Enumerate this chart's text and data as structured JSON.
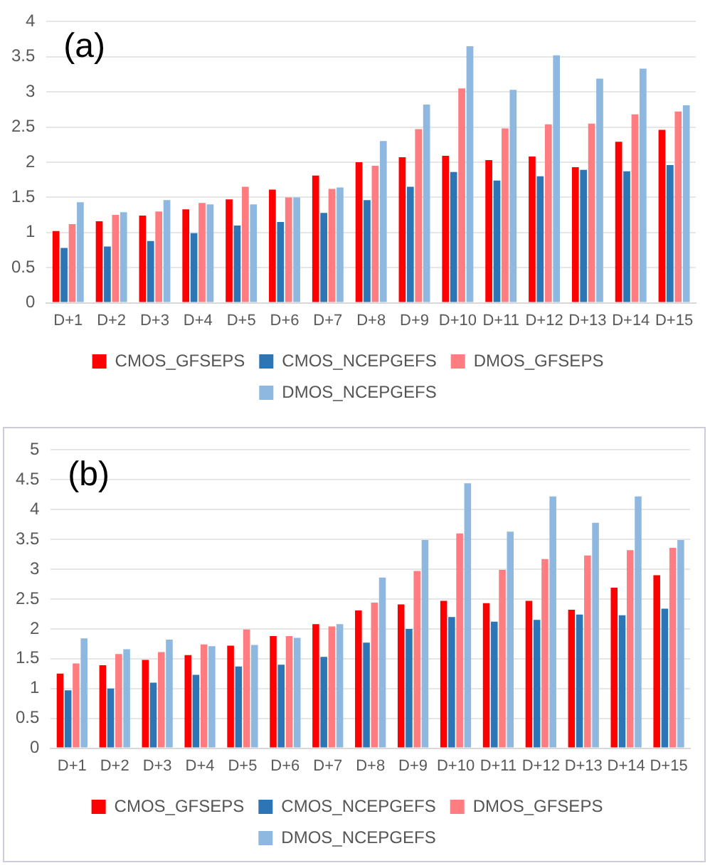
{
  "chart_data": [
    {
      "type": "bar",
      "annotations": [
        "(a)"
      ],
      "categories": [
        "D+1",
        "D+2",
        "D+3",
        "D+4",
        "D+5",
        "D+6",
        "D+7",
        "D+8",
        "D+9",
        "D+10",
        "D+11",
        "D+12",
        "D+13",
        "D+14",
        "D+15"
      ],
      "series": [
        {
          "name": "CMOS_GFSEPS",
          "color": "#ff0000",
          "values": [
            1.02,
            1.16,
            1.24,
            1.33,
            1.47,
            1.61,
            1.81,
            2.0,
            2.07,
            2.09,
            2.03,
            2.08,
            1.93,
            2.29,
            2.46
          ]
        },
        {
          "name": "CMOS_NCEPGEFS",
          "color": "#2e75b6",
          "values": [
            0.78,
            0.8,
            0.88,
            0.99,
            1.1,
            1.15,
            1.28,
            1.46,
            1.65,
            1.86,
            1.74,
            1.8,
            1.89,
            1.87,
            1.96
          ]
        },
        {
          "name": "DMOS_GFSEPS",
          "color": "#ff7c80",
          "values": [
            1.12,
            1.25,
            1.3,
            1.42,
            1.65,
            1.5,
            1.62,
            1.95,
            2.47,
            3.05,
            2.48,
            2.54,
            2.55,
            2.68,
            2.72
          ]
        },
        {
          "name": "DMOS_NCEPGEFS",
          "color": "#8fb8e0",
          "values": [
            1.43,
            1.29,
            1.46,
            1.4,
            1.4,
            1.5,
            1.64,
            2.3,
            2.82,
            3.65,
            3.03,
            3.52,
            3.19,
            3.33,
            2.81
          ]
        }
      ],
      "ylim": [
        0,
        4
      ],
      "yticks": [
        0,
        0.5,
        1,
        1.5,
        2,
        2.5,
        3,
        3.5,
        4
      ],
      "grid": "y",
      "legend": "bottom"
    },
    {
      "type": "bar",
      "annotations": [
        "(b)"
      ],
      "categories": [
        "D+1",
        "D+2",
        "D+3",
        "D+4",
        "D+5",
        "D+6",
        "D+7",
        "D+8",
        "D+9",
        "D+10",
        "D+11",
        "D+12",
        "D+13",
        "D+14",
        "D+15"
      ],
      "series": [
        {
          "name": "CMOS_GFSEPS",
          "color": "#ff0000",
          "values": [
            1.25,
            1.39,
            1.48,
            1.56,
            1.72,
            1.88,
            2.08,
            2.31,
            2.41,
            2.47,
            2.43,
            2.47,
            2.32,
            2.69,
            2.9
          ]
        },
        {
          "name": "CMOS_NCEPGEFS",
          "color": "#2e75b6",
          "values": [
            0.97,
            1.0,
            1.1,
            1.23,
            1.37,
            1.4,
            1.53,
            1.77,
            2.0,
            2.2,
            2.12,
            2.15,
            2.24,
            2.23,
            2.34
          ]
        },
        {
          "name": "DMOS_GFSEPS",
          "color": "#ff7c80",
          "values": [
            1.42,
            1.58,
            1.61,
            1.74,
            1.99,
            1.88,
            2.04,
            2.44,
            2.97,
            3.6,
            2.99,
            3.17,
            3.23,
            3.32,
            3.36
          ]
        },
        {
          "name": "DMOS_NCEPGEFS",
          "color": "#8fb8e0",
          "values": [
            1.84,
            1.66,
            1.82,
            1.71,
            1.73,
            1.85,
            2.08,
            2.86,
            3.49,
            4.44,
            3.63,
            4.22,
            3.78,
            4.22,
            3.49
          ]
        }
      ],
      "ylim": [
        0,
        5
      ],
      "yticks": [
        0,
        0.5,
        1,
        1.5,
        2,
        2.5,
        3,
        3.5,
        4,
        4.5,
        5
      ],
      "grid": "y",
      "legend": "bottom"
    }
  ]
}
